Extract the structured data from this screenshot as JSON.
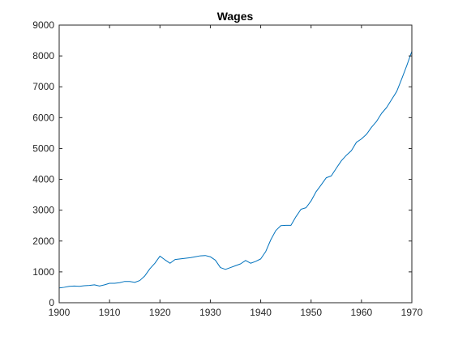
{
  "chart_data": {
    "type": "line",
    "title": "Wages",
    "xlabel": "",
    "ylabel": "",
    "xlim": [
      1900,
      1970
    ],
    "ylim": [
      0,
      9000
    ],
    "xticks": [
      1900,
      1910,
      1920,
      1930,
      1940,
      1950,
      1960,
      1970
    ],
    "yticks": [
      0,
      1000,
      2000,
      3000,
      4000,
      5000,
      6000,
      7000,
      8000,
      9000
    ],
    "grid": false,
    "legend": "none",
    "series": [
      {
        "color": "#0072BD",
        "x": [
          1900,
          1901,
          1902,
          1903,
          1904,
          1905,
          1906,
          1907,
          1908,
          1909,
          1910,
          1911,
          1912,
          1913,
          1914,
          1915,
          1916,
          1917,
          1918,
          1919,
          1920,
          1921,
          1922,
          1923,
          1924,
          1925,
          1926,
          1927,
          1928,
          1929,
          1930,
          1931,
          1932,
          1933,
          1934,
          1935,
          1936,
          1937,
          1938,
          1939,
          1940,
          1941,
          1942,
          1943,
          1944,
          1945,
          1946,
          1947,
          1948,
          1949,
          1950,
          1951,
          1952,
          1953,
          1954,
          1955,
          1956,
          1957,
          1958,
          1959,
          1960,
          1961,
          1962,
          1963,
          1964,
          1965,
          1966,
          1967,
          1968,
          1969,
          1970
        ],
        "y": [
          480,
          500,
          530,
          540,
          530,
          550,
          560,
          580,
          540,
          580,
          630,
          630,
          650,
          690,
          690,
          660,
          720,
          870,
          1100,
          1280,
          1510,
          1390,
          1280,
          1400,
          1420,
          1440,
          1460,
          1490,
          1520,
          1530,
          1490,
          1380,
          1140,
          1080,
          1140,
          1200,
          1260,
          1370,
          1280,
          1340,
          1420,
          1660,
          2040,
          2340,
          2500,
          2510,
          2510,
          2790,
          3030,
          3080,
          3300,
          3600,
          3820,
          4050,
          4110,
          4360,
          4600,
          4780,
          4930,
          5200,
          5310,
          5460,
          5690,
          5880,
          6140,
          6330,
          6590,
          6850,
          7260,
          7690,
          8150
        ]
      }
    ]
  }
}
